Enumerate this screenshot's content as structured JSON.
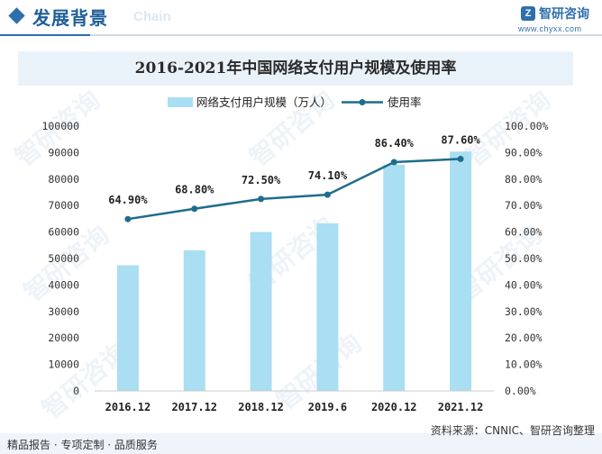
{
  "header": {
    "section_title": "发展背景",
    "section_subtitle": "Chain",
    "brand_name": "智研咨询",
    "brand_url": "www.chyxx.com"
  },
  "footer": {
    "left": "精品报告 · 专项定制 · 品质服务",
    "source": "资料来源：CNNIC、智研咨询整理"
  },
  "watermark": "智研咨询",
  "colors": {
    "bar": "#a9def3",
    "line": "#1f6d8c",
    "title_band": "#eaf2f9",
    "accent": "#2e6fad"
  },
  "chart_data": {
    "type": "bar",
    "title": "2016-2021年中国网络支付用户规模及使用率",
    "categories": [
      "2016.12",
      "2017.12",
      "2018.12",
      "2019.6",
      "2020.12",
      "2021.12"
    ],
    "series": [
      {
        "name": "网络支付用户规模（万人）",
        "type": "bar",
        "axis": "left",
        "values": [
          47450,
          53110,
          60040,
          63305,
          85434,
          90363
        ]
      },
      {
        "name": "使用率",
        "type": "line",
        "axis": "right",
        "values": [
          64.9,
          68.8,
          72.5,
          74.1,
          86.4,
          87.6
        ],
        "labels": [
          "64.90%",
          "68.80%",
          "72.50%",
          "74.10%",
          "86.40%",
          "87.60%"
        ]
      }
    ],
    "y_left": {
      "min": 0,
      "max": 100000,
      "ticks": [
        "0",
        "10000",
        "20000",
        "30000",
        "40000",
        "50000",
        "60000",
        "70000",
        "80000",
        "90000",
        "100000"
      ]
    },
    "y_right": {
      "min": 0,
      "max": 100,
      "ticks": [
        "0.00%",
        "10.00%",
        "20.00%",
        "30.00%",
        "40.00%",
        "50.00%",
        "60.00%",
        "70.00%",
        "80.00%",
        "90.00%",
        "100.00%"
      ]
    },
    "legend_position": "top",
    "grid": false
  }
}
